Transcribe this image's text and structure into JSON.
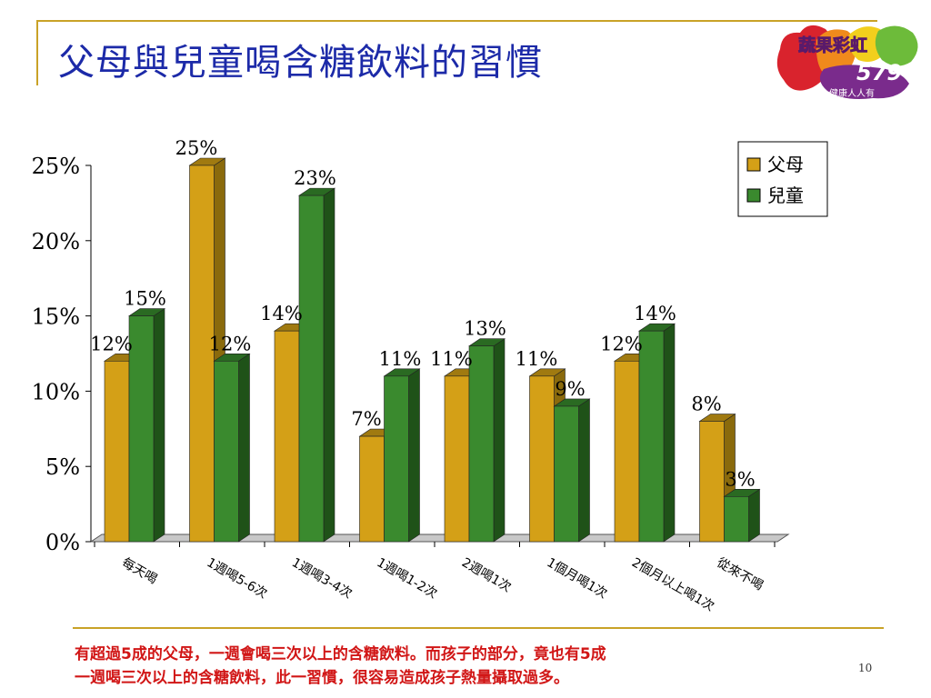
{
  "slide": {
    "title": "父母與兒童喝含糖飲料的習慣",
    "caption_line1": "有超過5成的父母，一週會喝三次以上的含糖飲料。而孩子的部分，竟也有5成",
    "caption_line2": "一週喝三次以上的含糖飲料，此一習慣，很容易造成孩子熱量攝取過多。",
    "page_number": "10"
  },
  "logo": {
    "text_main": "蔬果彩虹",
    "text_number": "579",
    "text_sub": "健康人人有"
  },
  "chart_data": {
    "type": "bar",
    "categories": [
      "每天喝",
      "1週喝5-6次",
      "1週喝3-4次",
      "1週喝1-2次",
      "2週喝1次",
      "1個月喝1次",
      "2個月以上喝1次",
      "從來不喝"
    ],
    "series": [
      {
        "name": "父母",
        "values": [
          12,
          25,
          14,
          7,
          11,
          11,
          12,
          8
        ],
        "labels": [
          "12%",
          "25%",
          "14%",
          "7%",
          "11%",
          "11%",
          "12%",
          "8%"
        ],
        "color": "#d4a017"
      },
      {
        "name": "兒童",
        "values": [
          15,
          12,
          23,
          11,
          13,
          9,
          14,
          3
        ],
        "labels": [
          "15%",
          "12%",
          "23%",
          "11%",
          "13%",
          "9%",
          "14%",
          "3%"
        ],
        "color": "#3a8a2e"
      }
    ],
    "yticks": [
      "0%",
      "5%",
      "10%",
      "15%",
      "20%",
      "25%"
    ],
    "ylim": [
      0,
      25
    ],
    "legend_position": "top-right",
    "style": "3d-column"
  }
}
